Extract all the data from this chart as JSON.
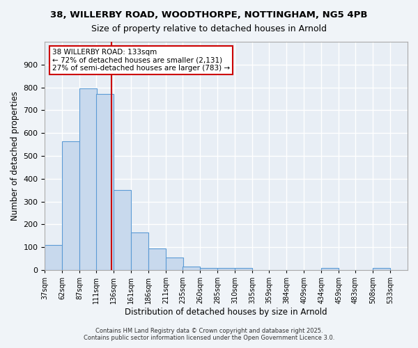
{
  "title1": "38, WILLERBY ROAD, WOODTHORPE, NOTTINGHAM, NG5 4PB",
  "title2": "Size of property relative to detached houses in Arnold",
  "xlabel": "Distribution of detached houses by size in Arnold",
  "ylabel": "Number of detached properties",
  "bar_color": "#c8d9ed",
  "bar_edge_color": "#5b9bd5",
  "background_color": "#e8eef5",
  "grid_color": "#ffffff",
  "bins": [
    37,
    62,
    87,
    111,
    136,
    161,
    186,
    211,
    235,
    260,
    285,
    310,
    335,
    359,
    384,
    409,
    434,
    459,
    483,
    508,
    533,
    558
  ],
  "bin_labels": [
    "37sqm",
    "62sqm",
    "87sqm",
    "111sqm",
    "136sqm",
    "161sqm",
    "186sqm",
    "211sqm",
    "235sqm",
    "260sqm",
    "285sqm",
    "310sqm",
    "335sqm",
    "359sqm",
    "384sqm",
    "409sqm",
    "434sqm",
    "459sqm",
    "483sqm",
    "508sqm",
    "533sqm"
  ],
  "heights": [
    110,
    565,
    795,
    770,
    350,
    165,
    95,
    55,
    15,
    10,
    10,
    8,
    0,
    0,
    0,
    0,
    8,
    0,
    0,
    8,
    0
  ],
  "red_line_x": 133,
  "annotation_title": "38 WILLERBY ROAD: 133sqm",
  "annotation_line1": "← 72% of detached houses are smaller (2,131)",
  "annotation_line2": "27% of semi-detached houses are larger (783) →",
  "annotation_color": "#cc0000",
  "annotation_bg": "#ffffff",
  "ylim": [
    0,
    1000
  ],
  "yticks": [
    0,
    100,
    200,
    300,
    400,
    500,
    600,
    700,
    800,
    900,
    1000
  ],
  "footer1": "Contains HM Land Registry data © Crown copyright and database right 2025.",
  "footer2": "Contains public sector information licensed under the Open Government Licence 3.0."
}
